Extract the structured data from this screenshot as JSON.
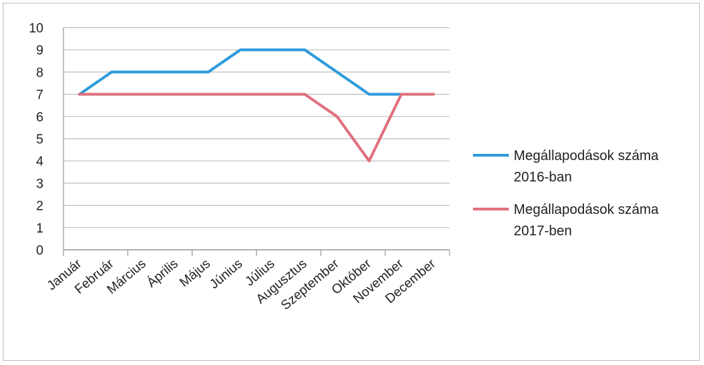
{
  "chart_data": {
    "type": "line",
    "categories": [
      "Január",
      "Február",
      "Március",
      "Április",
      "Május",
      "Június",
      "Július",
      "Augusztus",
      "Szeptember",
      "Október",
      "November",
      "December"
    ],
    "series": [
      {
        "name": "Megállapodások száma 2016-ban",
        "name_lines": [
          "Megállapodások száma",
          "2016-ban"
        ],
        "color": "#2e9bdc",
        "values": [
          7,
          8,
          8,
          8,
          8,
          9,
          9,
          9,
          8,
          7,
          7,
          null
        ]
      },
      {
        "name": "Megállapodások száma 2017-ben",
        "name_lines": [
          "Megállapodások száma",
          "2017-ben"
        ],
        "color": "#e0707e",
        "values": [
          7,
          7,
          7,
          7,
          7,
          7,
          7,
          7,
          6,
          4,
          7,
          7
        ]
      }
    ],
    "y_ticks": [
      "0",
      "1",
      "2",
      "3",
      "4",
      "5",
      "6",
      "7",
      "8",
      "9",
      "10"
    ],
    "ylim": [
      0,
      10
    ],
    "grid": true,
    "legend_position": "right",
    "gridline_color": "#bdbdbd",
    "axis_color": "#9a9a9a"
  }
}
